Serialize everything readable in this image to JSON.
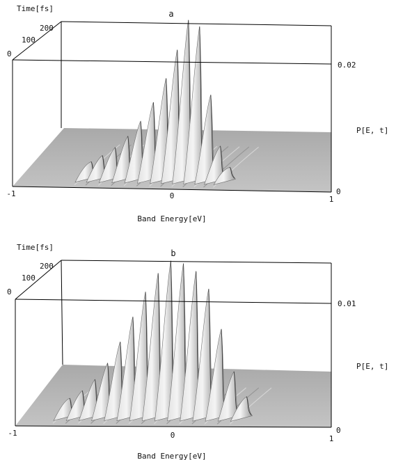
{
  "figure": {
    "background_color": "#ffffff",
    "surface_color": "#b9b9b9",
    "frame_color": "#000000"
  },
  "chart_data": [
    {
      "type": "3d-surface",
      "title": "a",
      "xlabel": "Band Energy[eV]",
      "ylabel": "Time[fs]",
      "zlabel": "P[E, t]",
      "xlim": [
        -1,
        1
      ],
      "ylim": [
        0,
        200
      ],
      "zlim": [
        0,
        0.026
      ],
      "x_ticks": [
        "-1",
        "0",
        "1"
      ],
      "y_ticks": [
        "0",
        "100",
        "200"
      ],
      "z_ticks": [
        "0",
        "0.02"
      ],
      "grid": false,
      "peaks": [
        {
          "energy": -0.55,
          "p": 0.0017
        },
        {
          "energy": -0.48,
          "p": 0.0027
        },
        {
          "energy": -0.4,
          "p": 0.004
        },
        {
          "energy": -0.32,
          "p": 0.0058
        },
        {
          "energy": -0.24,
          "p": 0.0082
        },
        {
          "energy": -0.16,
          "p": 0.0112
        },
        {
          "energy": -0.08,
          "p": 0.015
        },
        {
          "energy": -0.01,
          "p": 0.0195
        },
        {
          "energy": 0.06,
          "p": 0.0242
        },
        {
          "energy": 0.13,
          "p": 0.0232
        },
        {
          "energy": 0.2,
          "p": 0.0125
        },
        {
          "energy": 0.26,
          "p": 0.0045
        },
        {
          "energy": 0.32,
          "p": 0.0012
        }
      ]
    },
    {
      "type": "3d-surface",
      "title": "b",
      "xlabel": "Band Energy[eV]",
      "ylabel": "Time[fs]",
      "zlabel": "P[E, t]",
      "xlim": [
        -1,
        1
      ],
      "ylim": [
        0,
        200
      ],
      "zlim": [
        0,
        0.013
      ],
      "x_ticks": [
        "-1",
        "0",
        "1"
      ],
      "y_ticks": [
        "0",
        "100",
        "200"
      ],
      "z_ticks": [
        "0",
        "0.01"
      ],
      "grid": false,
      "peaks": [
        {
          "energy": -0.7,
          "p": 0.001
        },
        {
          "energy": -0.62,
          "p": 0.0016
        },
        {
          "energy": -0.54,
          "p": 0.0025
        },
        {
          "energy": -0.46,
          "p": 0.0038
        },
        {
          "energy": -0.38,
          "p": 0.0055
        },
        {
          "energy": -0.3,
          "p": 0.0075
        },
        {
          "energy": -0.22,
          "p": 0.0095
        },
        {
          "energy": -0.14,
          "p": 0.011
        },
        {
          "energy": -0.06,
          "p": 0.012
        },
        {
          "energy": 0.02,
          "p": 0.0118
        },
        {
          "energy": 0.1,
          "p": 0.0112
        },
        {
          "energy": 0.18,
          "p": 0.0098
        },
        {
          "energy": 0.26,
          "p": 0.0066
        },
        {
          "energy": 0.34,
          "p": 0.0032
        },
        {
          "energy": 0.42,
          "p": 0.0012
        }
      ]
    }
  ]
}
